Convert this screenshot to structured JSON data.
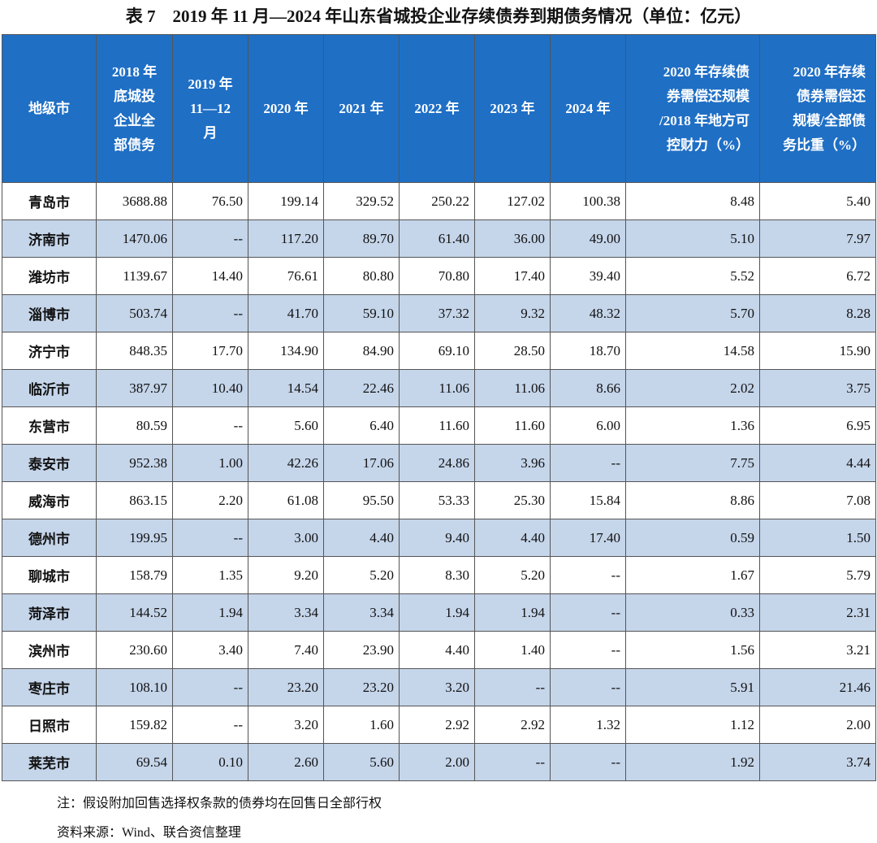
{
  "title": "表 7　2019 年 11 月—2024 年山东省城投企业存续债券到期债务情况（单位：亿元）",
  "table": {
    "header": [
      [
        "地级市"
      ],
      [
        "2018 年",
        "底城投",
        "企业全",
        "部债务"
      ],
      [
        "2019 年",
        "11—12",
        "月"
      ],
      [
        "2020 年"
      ],
      [
        "2021 年"
      ],
      [
        "2022 年"
      ],
      [
        "2023 年"
      ],
      [
        "2024 年"
      ],
      [
        "2020 年存续债",
        "券需偿还规模",
        "/2018 年地方可",
        "控财力（%）"
      ],
      [
        "2020 年存续",
        "债券需偿还",
        "规模/全部债",
        "务比重（%）"
      ]
    ],
    "rows": [
      [
        "青岛市",
        "3688.88",
        "76.50",
        "199.14",
        "329.52",
        "250.22",
        "127.02",
        "100.38",
        "8.48",
        "5.40"
      ],
      [
        "济南市",
        "1470.06",
        "--",
        "117.20",
        "89.70",
        "61.40",
        "36.00",
        "49.00",
        "5.10",
        "7.97"
      ],
      [
        "潍坊市",
        "1139.67",
        "14.40",
        "76.61",
        "80.80",
        "70.80",
        "17.40",
        "39.40",
        "5.52",
        "6.72"
      ],
      [
        "淄博市",
        "503.74",
        "--",
        "41.70",
        "59.10",
        "37.32",
        "9.32",
        "48.32",
        "5.70",
        "8.28"
      ],
      [
        "济宁市",
        "848.35",
        "17.70",
        "134.90",
        "84.90",
        "69.10",
        "28.50",
        "18.70",
        "14.58",
        "15.90"
      ],
      [
        "临沂市",
        "387.97",
        "10.40",
        "14.54",
        "22.46",
        "11.06",
        "11.06",
        "8.66",
        "2.02",
        "3.75"
      ],
      [
        "东营市",
        "80.59",
        "--",
        "5.60",
        "6.40",
        "11.60",
        "11.60",
        "6.00",
        "1.36",
        "6.95"
      ],
      [
        "泰安市",
        "952.38",
        "1.00",
        "42.26",
        "17.06",
        "24.86",
        "3.96",
        "--",
        "7.75",
        "4.44"
      ],
      [
        "威海市",
        "863.15",
        "2.20",
        "61.08",
        "95.50",
        "53.33",
        "25.30",
        "15.84",
        "8.86",
        "7.08"
      ],
      [
        "德州市",
        "199.95",
        "--",
        "3.00",
        "4.40",
        "9.40",
        "4.40",
        "17.40",
        "0.59",
        "1.50"
      ],
      [
        "聊城市",
        "158.79",
        "1.35",
        "9.20",
        "5.20",
        "8.30",
        "5.20",
        "--",
        "1.67",
        "5.79"
      ],
      [
        "菏泽市",
        "144.52",
        "1.94",
        "3.34",
        "3.34",
        "1.94",
        "1.94",
        "--",
        "0.33",
        "2.31"
      ],
      [
        "滨州市",
        "230.60",
        "3.40",
        "7.40",
        "23.90",
        "4.40",
        "1.40",
        "--",
        "1.56",
        "3.21"
      ],
      [
        "枣庄市",
        "108.10",
        "--",
        "23.20",
        "23.20",
        "3.20",
        "--",
        "--",
        "5.91",
        "21.46"
      ],
      [
        "日照市",
        "159.82",
        "--",
        "3.20",
        "1.60",
        "2.92",
        "2.92",
        "1.32",
        "1.12",
        "2.00"
      ],
      [
        "莱芜市",
        "69.54",
        "0.10",
        "2.60",
        "5.60",
        "2.00",
        "--",
        "--",
        "1.92",
        "3.74"
      ]
    ]
  },
  "notes": [
    "注：假设附加回售选择权条款的债券均在回售日全部行权",
    "资料来源：Wind、联合资信整理"
  ]
}
